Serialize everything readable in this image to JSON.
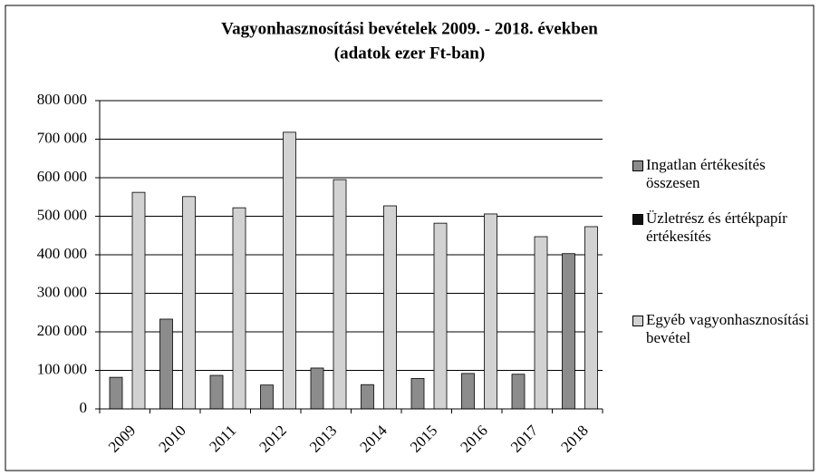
{
  "chart_data": {
    "type": "bar",
    "title": "Vagyonhasznosítási bevételek 2009. - 2018. években",
    "subtitle": "(adatok ezer Ft-ban)",
    "categories": [
      "2009",
      "2010",
      "2011",
      "2012",
      "2013",
      "2014",
      "2015",
      "2016",
      "2017",
      "2018"
    ],
    "series": [
      {
        "name": "Ingatlan értékesítés összesen",
        "color": "#8c8c8c",
        "values": [
          82000,
          233000,
          87000,
          62000,
          106000,
          63000,
          79000,
          92000,
          90000,
          403000
        ]
      },
      {
        "name": "Üzletrész és értékpapír értékesítés",
        "color": "#111111",
        "values": [
          0,
          0,
          0,
          0,
          0,
          0,
          0,
          0,
          0,
          0
        ]
      },
      {
        "name": "Egyéb vagyonhasznosítási bevétel",
        "color": "#d2d2d2",
        "values": [
          562000,
          551000,
          522000,
          718000,
          595000,
          527000,
          482000,
          506000,
          447000,
          473000
        ]
      }
    ],
    "ylim": [
      0,
      800000
    ],
    "yticks": [
      {
        "value": 0,
        "label": "0"
      },
      {
        "value": 100000,
        "label": "100 000"
      },
      {
        "value": 200000,
        "label": "200 000"
      },
      {
        "value": 300000,
        "label": "300 000"
      },
      {
        "value": 400000,
        "label": "400 000"
      },
      {
        "value": 500000,
        "label": "500 000"
      },
      {
        "value": 600000,
        "label": "600 000"
      },
      {
        "value": 700000,
        "label": "700 000"
      },
      {
        "value": 800000,
        "label": "800 000"
      }
    ],
    "grid": true,
    "legend": "right"
  }
}
